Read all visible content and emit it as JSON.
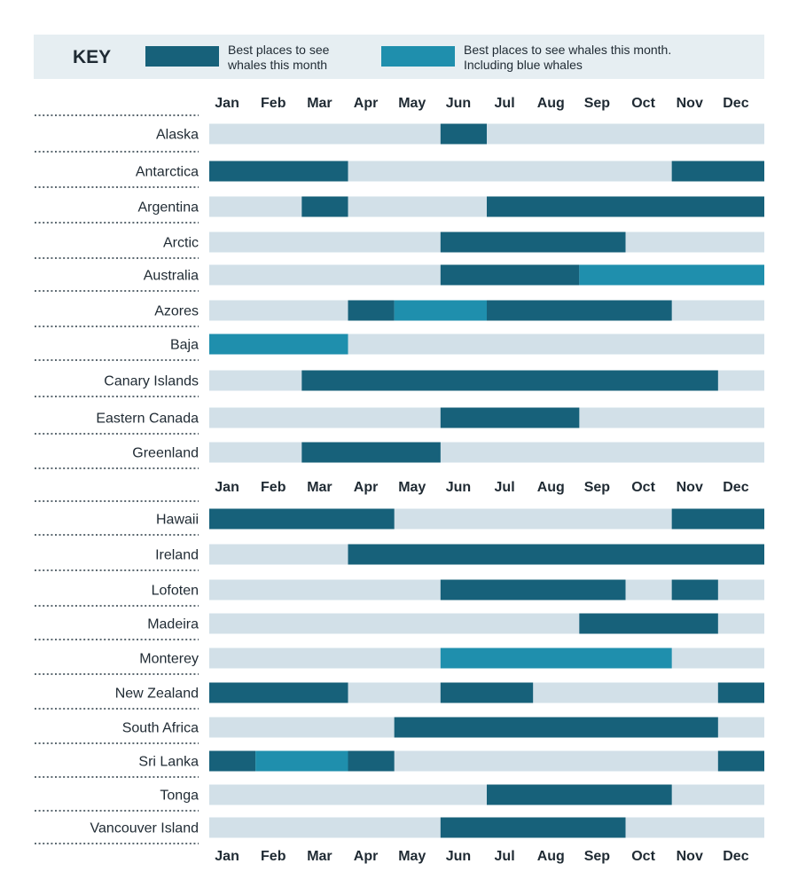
{
  "key": {
    "title": "KEY",
    "best_label_line1": "Best places to see",
    "best_label_line2": "whales this month",
    "blue_label_line1": "Best places to see whales this month.",
    "blue_label_line2": "Including blue whales"
  },
  "colors": {
    "best": "#17617a",
    "blue": "#1f8fad",
    "off": "#d2e0e8",
    "key_bg": "#e6eef2"
  },
  "chart_data": {
    "type": "timeline",
    "months": [
      "Jan",
      "Feb",
      "Mar",
      "Apr",
      "May",
      "Jun",
      "Jul",
      "Aug",
      "Sep",
      "Oct",
      "Nov",
      "Dec"
    ],
    "legend": [
      {
        "status": "best",
        "label": "Best places to see whales this month"
      },
      {
        "status": "blue",
        "label": "Best places to see whales this month. Including blue whales"
      }
    ],
    "locations": [
      {
        "name": "Alaska",
        "segments": [
          {
            "start": 6,
            "end": 6,
            "status": "best"
          }
        ]
      },
      {
        "name": "Antarctica",
        "segments": [
          {
            "start": 1,
            "end": 3,
            "status": "best"
          },
          {
            "start": 11,
            "end": 12,
            "status": "best"
          }
        ]
      },
      {
        "name": "Argentina",
        "segments": [
          {
            "start": 3,
            "end": 3,
            "status": "best"
          },
          {
            "start": 7,
            "end": 12,
            "status": "best"
          }
        ]
      },
      {
        "name": "Arctic",
        "segments": [
          {
            "start": 6,
            "end": 9,
            "status": "best"
          }
        ]
      },
      {
        "name": "Australia",
        "segments": [
          {
            "start": 6,
            "end": 8,
            "status": "best"
          },
          {
            "start": 9,
            "end": 12,
            "status": "blue"
          }
        ]
      },
      {
        "name": "Azores",
        "segments": [
          {
            "start": 4,
            "end": 4,
            "status": "best"
          },
          {
            "start": 5,
            "end": 6,
            "status": "blue"
          },
          {
            "start": 7,
            "end": 10,
            "status": "best"
          }
        ]
      },
      {
        "name": "Baja",
        "segments": [
          {
            "start": 1,
            "end": 3,
            "status": "blue"
          }
        ]
      },
      {
        "name": "Canary Islands",
        "segments": [
          {
            "start": 3,
            "end": 11,
            "status": "best"
          }
        ]
      },
      {
        "name": "Eastern Canada",
        "segments": [
          {
            "start": 6,
            "end": 8,
            "status": "best"
          }
        ]
      },
      {
        "name": "Greenland",
        "segments": [
          {
            "start": 3,
            "end": 5,
            "status": "best"
          }
        ]
      },
      {
        "name": "Hawaii",
        "segments": [
          {
            "start": 1,
            "end": 4,
            "status": "best"
          },
          {
            "start": 11,
            "end": 12,
            "status": "best"
          }
        ]
      },
      {
        "name": "Ireland",
        "segments": [
          {
            "start": 4,
            "end": 12,
            "status": "best"
          }
        ]
      },
      {
        "name": "Lofoten",
        "segments": [
          {
            "start": 6,
            "end": 9,
            "status": "best"
          },
          {
            "start": 11,
            "end": 11,
            "status": "best"
          }
        ]
      },
      {
        "name": "Madeira",
        "segments": [
          {
            "start": 9,
            "end": 11,
            "status": "best"
          }
        ]
      },
      {
        "name": "Monterey",
        "segments": [
          {
            "start": 6,
            "end": 10,
            "status": "blue"
          }
        ]
      },
      {
        "name": "New Zealand",
        "segments": [
          {
            "start": 1,
            "end": 3,
            "status": "best"
          },
          {
            "start": 6,
            "end": 7,
            "status": "best"
          },
          {
            "start": 12,
            "end": 12,
            "status": "best"
          }
        ]
      },
      {
        "name": "South Africa",
        "segments": [
          {
            "start": 5,
            "end": 11,
            "status": "best"
          }
        ]
      },
      {
        "name": "Sri Lanka",
        "segments": [
          {
            "start": 1,
            "end": 1,
            "status": "best"
          },
          {
            "start": 2,
            "end": 3,
            "status": "blue"
          },
          {
            "start": 4,
            "end": 4,
            "status": "best"
          },
          {
            "start": 12,
            "end": 12,
            "status": "best"
          }
        ]
      },
      {
        "name": "Tonga",
        "segments": [
          {
            "start": 7,
            "end": 10,
            "status": "best"
          }
        ]
      },
      {
        "name": "Vancouver Island",
        "segments": [
          {
            "start": 6,
            "end": 9,
            "status": "best"
          }
        ]
      }
    ]
  }
}
